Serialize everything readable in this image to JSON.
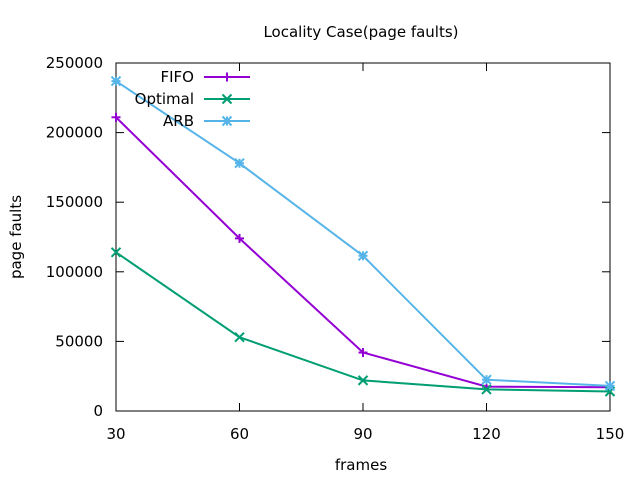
{
  "chart_data": {
    "type": "line",
    "title": "Locality Case(page faults)",
    "xlabel": "frames",
    "ylabel": "page faults",
    "x": [
      30,
      60,
      90,
      120,
      150
    ],
    "xlim": [
      30,
      150
    ],
    "ylim": [
      0,
      250000
    ],
    "x_ticks": [
      "30",
      "60",
      "90",
      "120",
      "150"
    ],
    "y_ticks": [
      "0",
      "50000",
      "100000",
      "150000",
      "200000",
      "250000"
    ],
    "y_tick_values": [
      0,
      50000,
      100000,
      150000,
      200000,
      250000
    ],
    "grid": false,
    "legend_position": "top-left",
    "series": [
      {
        "name": "FIFO",
        "color": "#9400d3",
        "marker": "plus",
        "values": [
          211000,
          124000,
          42000,
          17500,
          17000
        ]
      },
      {
        "name": "Optimal",
        "color": "#009e73",
        "marker": "cross",
        "values": [
          114000,
          53000,
          22000,
          15500,
          14000
        ]
      },
      {
        "name": "ARB",
        "color": "#56b4e9",
        "marker": "star",
        "values": [
          237000,
          178000,
          111500,
          22500,
          18000
        ]
      }
    ]
  }
}
